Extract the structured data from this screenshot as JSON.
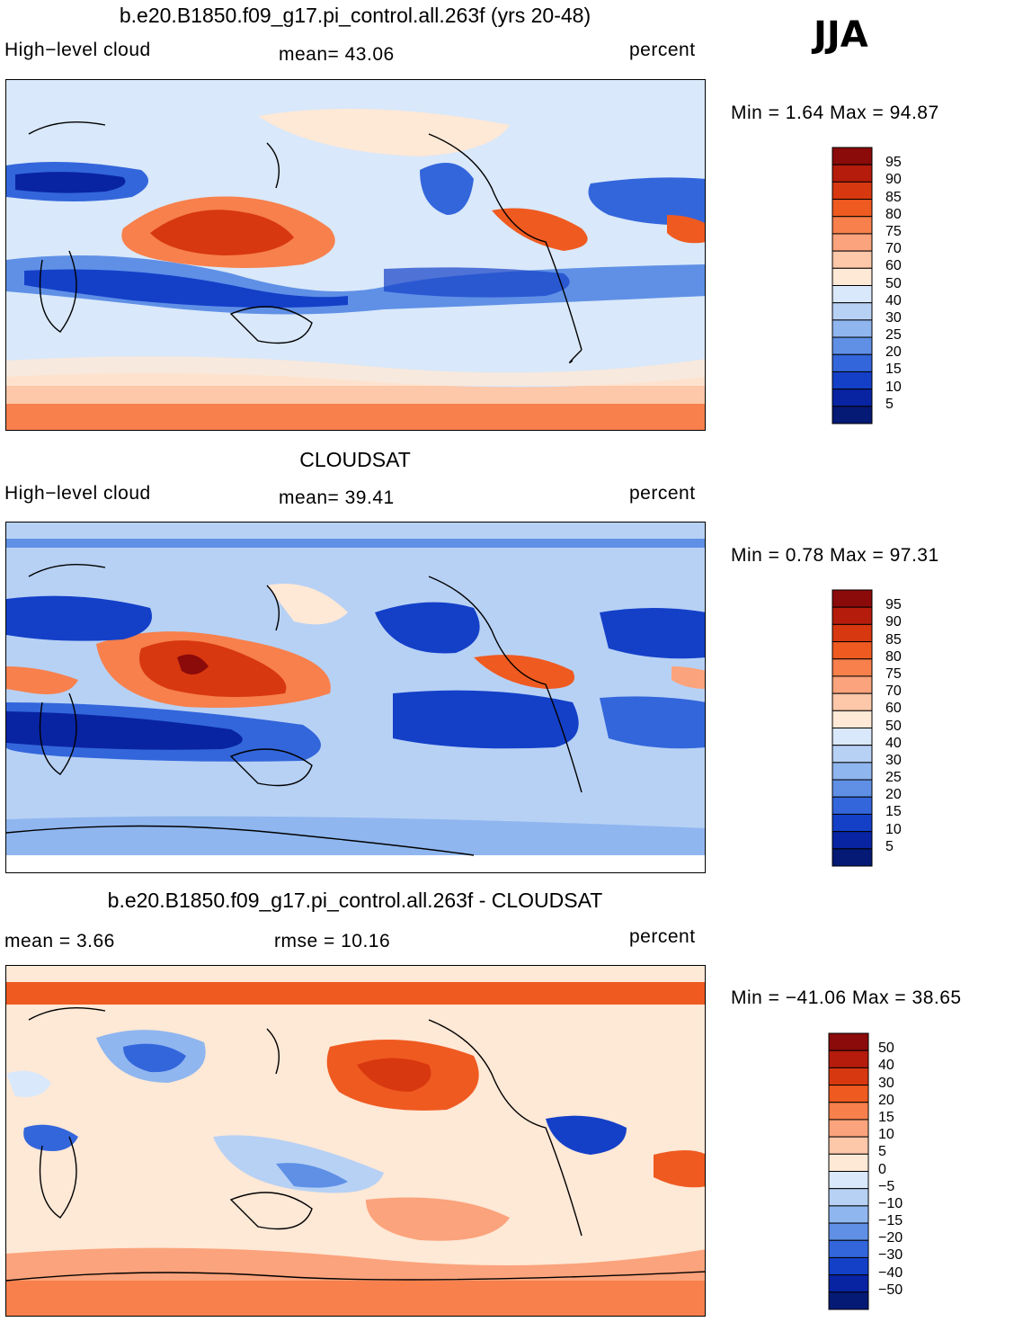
{
  "season": "JJA",
  "panels": [
    {
      "id": "model",
      "title": "b.e20.B1850.f09_g17.pi_control.all.263f (yrs 20-48)",
      "left_label": "High−level cloud",
      "mid_label": "mean=   43.06",
      "units": "percent",
      "minmax_label": "Min =    1.64  Max =   94.87"
    },
    {
      "id": "obs",
      "title": "CLOUDSAT",
      "left_label": "High−level cloud",
      "mid_label": "mean=   39.41",
      "units": "percent",
      "minmax_label": "Min =    0.78  Max =   97.31"
    },
    {
      "id": "diff",
      "title": "b.e20.B1850.f09_g17.pi_control.all.263f - CLOUDSAT",
      "left_label": "mean =     3.66",
      "mid_label": "rmse =    10.16",
      "units": "percent",
      "minmax_label": "Min = −41.06  Max =   38.65"
    }
  ],
  "chart_data": [
    {
      "type": "heatmap",
      "title": "b.e20.B1850.f09_g17.pi_control.all.263f (yrs 20-48)",
      "variable": "High-level cloud",
      "units": "percent",
      "mean": 43.06,
      "min": 1.64,
      "max": 94.87,
      "colorbar_levels": [
        "95",
        "90",
        "85",
        "80",
        "75",
        "70",
        "60",
        "50",
        "40",
        "30",
        "25",
        "20",
        "15",
        "10",
        "5"
      ],
      "colorbar_colors": [
        "#8b0a0a",
        "#b51c0c",
        "#d8380f",
        "#ef5a20",
        "#f7804c",
        "#fba37c",
        "#fdc7a9",
        "#fee8d6",
        "#d9e8fa",
        "#b7d1f5",
        "#8fb6ef",
        "#5f90e6",
        "#3366db",
        "#1440c8",
        "#0824a3",
        "#041a74"
      ]
    },
    {
      "type": "heatmap",
      "title": "CLOUDSAT",
      "variable": "High-level cloud",
      "units": "percent",
      "mean": 39.41,
      "min": 0.78,
      "max": 97.31,
      "colorbar_levels": [
        "95",
        "90",
        "85",
        "80",
        "75",
        "70",
        "60",
        "50",
        "40",
        "30",
        "25",
        "20",
        "15",
        "10",
        "5"
      ],
      "colorbar_colors": [
        "#8b0a0a",
        "#b51c0c",
        "#d8380f",
        "#ef5a20",
        "#f7804c",
        "#fba37c",
        "#fdc7a9",
        "#fee8d6",
        "#d9e8fa",
        "#b7d1f5",
        "#8fb6ef",
        "#5f90e6",
        "#3366db",
        "#1440c8",
        "#0824a3",
        "#041a74"
      ]
    },
    {
      "type": "heatmap",
      "title": "b.e20.B1850.f09_g17.pi_control.all.263f - CLOUDSAT",
      "units": "percent",
      "mean": 3.66,
      "rmse": 10.16,
      "min": -41.06,
      "max": 38.65,
      "colorbar_levels": [
        "50",
        "40",
        "30",
        "20",
        "15",
        "10",
        "5",
        "0",
        "−5",
        "−10",
        "−15",
        "−20",
        "−30",
        "−40",
        "−50"
      ],
      "colorbar_colors": [
        "#8b0a0a",
        "#b51c0c",
        "#d8380f",
        "#ef5a20",
        "#f7804c",
        "#fba37c",
        "#fdc7a9",
        "#fee8d6",
        "#d9e8fa",
        "#b7d1f5",
        "#8fb6ef",
        "#5f90e6",
        "#3366db",
        "#1440c8",
        "#0824a3",
        "#041a74"
      ]
    }
  ]
}
